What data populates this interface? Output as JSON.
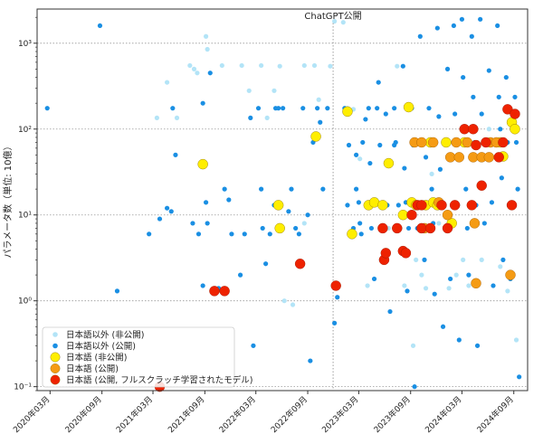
{
  "chart_data": {
    "type": "scatter",
    "title": "",
    "xlabel": "",
    "ylabel": "パラメータ数（単位: 10億）",
    "yscale": "log",
    "ylim": [
      0.09,
      2500
    ],
    "xlim": [
      "2020-01-15",
      "2024-10-20"
    ],
    "grid": "horizontal dotted at y-ticks",
    "xticks": [
      "2020年03月",
      "2020年09月",
      "2021年03月",
      "2021年09月",
      "2022年03月",
      "2022年09月",
      "2023年03月",
      "2023年09月",
      "2024年03月",
      "2024年09月"
    ],
    "yticks": [
      {
        "value": 0.1,
        "label": "10⁻¹"
      },
      {
        "value": 1,
        "label": "10⁰"
      },
      {
        "value": 10,
        "label": "10¹"
      },
      {
        "value": 100,
        "label": "10²"
      },
      {
        "value": 1000,
        "label": "10³"
      }
    ],
    "annotations": [
      {
        "x": "2022-11-30",
        "label": "ChatGPT公開"
      }
    ],
    "legend": {
      "position": "bottom-left"
    },
    "series": [
      {
        "name": "日本語以外 (非公開)",
        "color": "#b3e4f7",
        "points": [
          [
            "2021-03-15",
            135
          ],
          [
            "2021-04-20",
            350
          ],
          [
            "2021-05-25",
            135
          ],
          [
            "2021-07-10",
            550
          ],
          [
            "2021-07-25",
            500
          ],
          [
            "2021-08-05",
            450
          ],
          [
            "2021-09-05",
            1200
          ],
          [
            "2021-09-10",
            850
          ],
          [
            "2021-11-01",
            550
          ],
          [
            "2022-01-10",
            550
          ],
          [
            "2022-02-05",
            280
          ],
          [
            "2022-03-20",
            550
          ],
          [
            "2022-04-10",
            135
          ],
          [
            "2022-05-05",
            280
          ],
          [
            "2022-05-25",
            540
          ],
          [
            "2022-06-10",
            1.0
          ],
          [
            "2022-07-10",
            0.9
          ],
          [
            "2022-08-20",
            8
          ],
          [
            "2022-08-20",
            550
          ],
          [
            "2022-09-25",
            550
          ],
          [
            "2022-10-10",
            220
          ],
          [
            "2022-11-20",
            540
          ],
          [
            "2022-12-05",
            1800
          ],
          [
            "2023-01-05",
            1750
          ],
          [
            "2023-01-20",
            175
          ],
          [
            "2023-02-10",
            170
          ],
          [
            "2023-03-05",
            45
          ],
          [
            "2023-04-01",
            1.5
          ],
          [
            "2023-05-01",
            15
          ],
          [
            "2023-06-15",
            7
          ],
          [
            "2023-07-15",
            540
          ],
          [
            "2023-08-10",
            1.5
          ],
          [
            "2023-09-10",
            0.3
          ],
          [
            "2023-09-20",
            3
          ],
          [
            "2023-10-10",
            2
          ],
          [
            "2023-10-25",
            1.4
          ],
          [
            "2023-11-15",
            30
          ],
          [
            "2023-12-10",
            8
          ],
          [
            "2024-01-15",
            1.4
          ],
          [
            "2024-02-10",
            2
          ],
          [
            "2024-03-05",
            3
          ],
          [
            "2024-03-25",
            1.5
          ],
          [
            "2024-04-15",
            13
          ],
          [
            "2024-05-10",
            3
          ],
          [
            "2024-06-05",
            100
          ],
          [
            "2024-07-15",
            2.5
          ],
          [
            "2024-08-10",
            1.3
          ],
          [
            "2024-09-10",
            0.35
          ]
        ]
      },
      {
        "name": "日本語以外 (公開)",
        "color": "#1a8fe3",
        "points": [
          [
            "2020-02-20",
            175
          ],
          [
            "2020-08-25",
            1600
          ],
          [
            "2020-10-25",
            1.3
          ],
          [
            "2021-02-15",
            6
          ],
          [
            "2021-03-25",
            9
          ],
          [
            "2021-04-20",
            12
          ],
          [
            "2021-05-05",
            11
          ],
          [
            "2021-05-10",
            175
          ],
          [
            "2021-05-20",
            50
          ],
          [
            "2021-07-20",
            8
          ],
          [
            "2021-08-10",
            6
          ],
          [
            "2021-08-25",
            1.5
          ],
          [
            "2021-08-25",
            200
          ],
          [
            "2021-09-05",
            14
          ],
          [
            "2021-09-10",
            8
          ],
          [
            "2021-09-20",
            450
          ],
          [
            "2021-10-20",
            1.4
          ],
          [
            "2021-11-10",
            20
          ],
          [
            "2021-11-25",
            15
          ],
          [
            "2021-12-05",
            6
          ],
          [
            "2022-01-05",
            2
          ],
          [
            "2022-01-20",
            6
          ],
          [
            "2022-02-10",
            135
          ],
          [
            "2022-02-20",
            0.3
          ],
          [
            "2022-03-10",
            175
          ],
          [
            "2022-03-20",
            20
          ],
          [
            "2022-03-25",
            7
          ],
          [
            "2022-04-05",
            2.7
          ],
          [
            "2022-04-20",
            6
          ],
          [
            "2022-05-05",
            13
          ],
          [
            "2022-05-10",
            175
          ],
          [
            "2022-05-20",
            175
          ],
          [
            "2022-06-05",
            175
          ],
          [
            "2022-06-25",
            11
          ],
          [
            "2022-07-05",
            20
          ],
          [
            "2022-07-20",
            7
          ],
          [
            "2022-08-01",
            6
          ],
          [
            "2022-08-15",
            175
          ],
          [
            "2022-09-01",
            10
          ],
          [
            "2022-09-10",
            0.2
          ],
          [
            "2022-09-20",
            70
          ],
          [
            "2022-10-05",
            175
          ],
          [
            "2022-10-15",
            120
          ],
          [
            "2022-10-25",
            20
          ],
          [
            "2022-11-10",
            175
          ],
          [
            "2022-12-05",
            0.55
          ],
          [
            "2022-12-15",
            1.1
          ],
          [
            "2023-01-10",
            175
          ],
          [
            "2023-01-20",
            13
          ],
          [
            "2023-01-25",
            65
          ],
          [
            "2023-02-10",
            7
          ],
          [
            "2023-02-20",
            20
          ],
          [
            "2023-02-20",
            50
          ],
          [
            "2023-03-01",
            14
          ],
          [
            "2023-03-05",
            8
          ],
          [
            "2023-03-10",
            6
          ],
          [
            "2023-03-15",
            70
          ],
          [
            "2023-03-25",
            130
          ],
          [
            "2023-04-05",
            175
          ],
          [
            "2023-04-10",
            40
          ],
          [
            "2023-04-15",
            7
          ],
          [
            "2023-04-25",
            1.8
          ],
          [
            "2023-05-05",
            175
          ],
          [
            "2023-05-10",
            350
          ],
          [
            "2023-05-15",
            65
          ],
          [
            "2023-05-20",
            3
          ],
          [
            "2023-06-05",
            150
          ],
          [
            "2023-06-10",
            13
          ],
          [
            "2023-06-20",
            0.75
          ],
          [
            "2023-07-05",
            175
          ],
          [
            "2023-07-05",
            65
          ],
          [
            "2023-07-10",
            70
          ],
          [
            "2023-07-20",
            13
          ],
          [
            "2023-07-25",
            7
          ],
          [
            "2023-08-05",
            540
          ],
          [
            "2023-08-10",
            35
          ],
          [
            "2023-08-15",
            14
          ],
          [
            "2023-08-20",
            1.3
          ],
          [
            "2023-08-25",
            7
          ],
          [
            "2023-09-05",
            175
          ],
          [
            "2023-09-10",
            65
          ],
          [
            "2023-09-15",
            0.1
          ],
          [
            "2023-09-25",
            7
          ],
          [
            "2023-10-05",
            1200
          ],
          [
            "2023-10-10",
            70
          ],
          [
            "2023-10-15",
            13
          ],
          [
            "2023-10-20",
            3
          ],
          [
            "2023-10-25",
            47
          ],
          [
            "2023-11-05",
            175
          ],
          [
            "2023-11-10",
            65
          ],
          [
            "2023-11-15",
            20
          ],
          [
            "2023-11-20",
            8
          ],
          [
            "2023-11-25",
            1.2
          ],
          [
            "2023-12-05",
            1500
          ],
          [
            "2023-12-10",
            140
          ],
          [
            "2023-12-15",
            34
          ],
          [
            "2023-12-20",
            13
          ],
          [
            "2023-12-25",
            0.5
          ],
          [
            "2024-01-05",
            70
          ],
          [
            "2024-01-10",
            500
          ],
          [
            "2024-01-15",
            8
          ],
          [
            "2024-01-20",
            1.8
          ],
          [
            "2024-02-01",
            1600
          ],
          [
            "2024-02-05",
            150
          ],
          [
            "2024-02-10",
            47
          ],
          [
            "2024-02-15",
            13
          ],
          [
            "2024-02-20",
            0.35
          ],
          [
            "2024-03-01",
            1900
          ],
          [
            "2024-03-05",
            400
          ],
          [
            "2024-03-10",
            72
          ],
          [
            "2024-03-15",
            20
          ],
          [
            "2024-03-20",
            7
          ],
          [
            "2024-03-25",
            2
          ],
          [
            "2024-04-05",
            1200
          ],
          [
            "2024-04-10",
            236
          ],
          [
            "2024-04-15",
            70
          ],
          [
            "2024-04-20",
            13
          ],
          [
            "2024-04-25",
            0.3
          ],
          [
            "2024-05-05",
            1900
          ],
          [
            "2024-05-10",
            150
          ],
          [
            "2024-05-15",
            47
          ],
          [
            "2024-05-20",
            8
          ],
          [
            "2024-06-05",
            480
          ],
          [
            "2024-06-10",
            70
          ],
          [
            "2024-06-15",
            14
          ],
          [
            "2024-06-20",
            1.5
          ],
          [
            "2024-07-05",
            1600
          ],
          [
            "2024-07-10",
            236
          ],
          [
            "2024-07-15",
            100
          ],
          [
            "2024-07-20",
            27
          ],
          [
            "2024-07-25",
            3
          ],
          [
            "2024-08-05",
            400
          ],
          [
            "2024-08-10",
            70
          ],
          [
            "2024-08-15",
            13
          ],
          [
            "2024-08-20",
            1.8
          ],
          [
            "2024-09-05",
            236
          ],
          [
            "2024-09-10",
            70
          ],
          [
            "2024-09-15",
            20
          ],
          [
            "2024-09-20",
            0.13
          ]
        ]
      },
      {
        "name": "日本語 (非公開)",
        "color": "#ffee00",
        "points": [
          [
            "2021-08-25",
            39
          ],
          [
            "2022-05-20",
            13
          ],
          [
            "2022-05-25",
            7
          ],
          [
            "2022-09-30",
            82
          ],
          [
            "2023-01-20",
            160
          ],
          [
            "2023-02-05",
            6
          ],
          [
            "2023-04-05",
            13
          ],
          [
            "2023-04-25",
            14
          ],
          [
            "2023-05-25",
            13
          ],
          [
            "2023-06-15",
            40
          ],
          [
            "2023-08-05",
            10
          ],
          [
            "2023-08-25",
            180
          ],
          [
            "2023-09-05",
            14
          ],
          [
            "2023-09-20",
            13
          ],
          [
            "2023-10-25",
            13
          ],
          [
            "2023-11-10",
            70
          ],
          [
            "2023-11-20",
            14
          ],
          [
            "2023-12-05",
            13
          ],
          [
            "2024-01-05",
            70
          ],
          [
            "2024-01-25",
            8
          ],
          [
            "2024-03-10",
            70
          ],
          [
            "2024-07-15",
            70
          ],
          [
            "2024-07-25",
            48
          ],
          [
            "2024-08-25",
            120
          ],
          [
            "2024-09-05",
            100
          ]
        ]
      },
      {
        "name": "日本語 (公開)",
        "color": "#f59b14",
        "points": [
          [
            "2023-09-15",
            70
          ],
          [
            "2023-10-10",
            70
          ],
          [
            "2023-10-20",
            7
          ],
          [
            "2023-11-20",
            70
          ],
          [
            "2023-12-10",
            14
          ],
          [
            "2024-01-10",
            10
          ],
          [
            "2024-01-20",
            47
          ],
          [
            "2024-02-10",
            70
          ],
          [
            "2024-02-20",
            47
          ],
          [
            "2024-03-20",
            70
          ],
          [
            "2024-04-10",
            47
          ],
          [
            "2024-04-15",
            8
          ],
          [
            "2024-05-10",
            47
          ],
          [
            "2024-06-05",
            47
          ],
          [
            "2024-06-10",
            70
          ],
          [
            "2024-07-01",
            70
          ],
          [
            "2024-08-20",
            2
          ],
          [
            "2024-04-20",
            1.6
          ]
        ]
      },
      {
        "name": "日本語 (公開, フルスクラッチ学習されたモデル)",
        "color": "#ee2200",
        "points": [
          [
            "2021-03-25",
            0.1
          ],
          [
            "2021-10-05",
            1.3
          ],
          [
            "2021-11-10",
            1.3
          ],
          [
            "2022-08-05",
            2.7
          ],
          [
            "2022-12-10",
            1.5
          ],
          [
            "2023-05-25",
            7
          ],
          [
            "2023-05-30",
            3
          ],
          [
            "2023-06-05",
            3.6
          ],
          [
            "2023-07-15",
            7
          ],
          [
            "2023-08-05",
            3.8
          ],
          [
            "2023-08-15",
            3.6
          ],
          [
            "2023-09-05",
            10
          ],
          [
            "2023-09-25",
            13
          ],
          [
            "2023-10-10",
            13
          ],
          [
            "2023-10-10",
            7
          ],
          [
            "2023-11-10",
            7
          ],
          [
            "2023-12-20",
            13
          ],
          [
            "2024-01-10",
            7
          ],
          [
            "2024-02-05",
            13
          ],
          [
            "2024-03-10",
            100
          ],
          [
            "2024-04-05",
            13
          ],
          [
            "2024-04-10",
            100
          ],
          [
            "2024-04-20",
            65
          ],
          [
            "2024-05-10",
            22
          ],
          [
            "2024-05-25",
            70
          ],
          [
            "2024-07-10",
            47
          ],
          [
            "2024-07-25",
            70
          ],
          [
            "2024-08-10",
            170
          ],
          [
            "2024-08-25",
            13
          ],
          [
            "2024-09-05",
            150
          ]
        ]
      }
    ]
  }
}
